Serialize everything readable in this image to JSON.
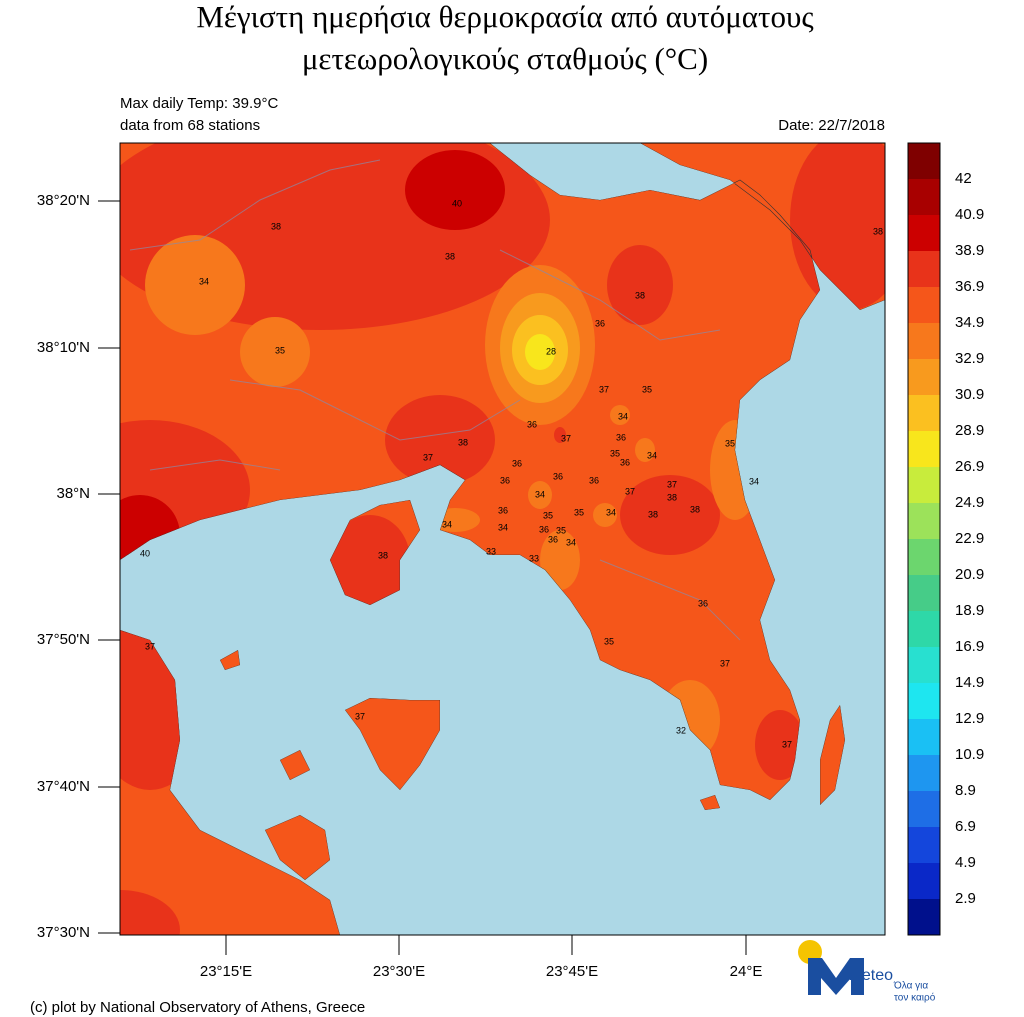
{
  "title": [
    "Μέγιστη ημερήσια θερμοκρασία από αυτόματους",
    "μετεωρολογικούς σταθμούς (°C)"
  ],
  "info": {
    "max_temp": "Max daily Temp: 39.9°C",
    "stations_count": "data from 68 stations",
    "date": "Date: 22/7/2018"
  },
  "map": {
    "lat_labels": [
      "38°20'N",
      "38°10'N",
      "38°N",
      "37°50'N",
      "37°40'N",
      "37°30'N"
    ],
    "lon_labels": [
      "23°15'E",
      "23°30'E",
      "23°45'E",
      "24°E"
    ],
    "sea_color": "#add8e6"
  },
  "stations": [
    40,
    38,
    38,
    34,
    38,
    38,
    36,
    35,
    28,
    37,
    35,
    34,
    35,
    36,
    37,
    38,
    36,
    35,
    36,
    34,
    37,
    36,
    36,
    36,
    36,
    37,
    37,
    34,
    34,
    38,
    38,
    38,
    34,
    35,
    36,
    34,
    34,
    35,
    36,
    35,
    36,
    34,
    33,
    33,
    38,
    40,
    37,
    36,
    35,
    37,
    37,
    32,
    37
  ],
  "colorbar": {
    "labels": [
      "42",
      "40.9",
      "38.9",
      "36.9",
      "34.9",
      "32.9",
      "30.9",
      "28.9",
      "26.9",
      "24.9",
      "22.9",
      "20.9",
      "18.9",
      "16.9",
      "14.9",
      "12.9",
      "10.9",
      "8.9",
      "6.9",
      "4.9",
      "2.9"
    ],
    "colors": [
      "#7f0000",
      "#a80000",
      "#cc0000",
      "#e8331a",
      "#f5561a",
      "#f7781c",
      "#f89a1e",
      "#fbc020",
      "#f8e61c",
      "#c8ec3c",
      "#9ce25a",
      "#6cd66e",
      "#46cc88",
      "#2ed8a8",
      "#28e0d0",
      "#1ee6f0",
      "#1ac0f4",
      "#1e96f0",
      "#1e6ee6",
      "#1446dc",
      "#0a28c8",
      "#00108c"
    ]
  },
  "footer": "(c) plot by National Observatory of Athens, Greece",
  "logo": {
    "name": "Meteo",
    "tagline": [
      "Όλα για",
      "τον καιρό"
    ]
  }
}
